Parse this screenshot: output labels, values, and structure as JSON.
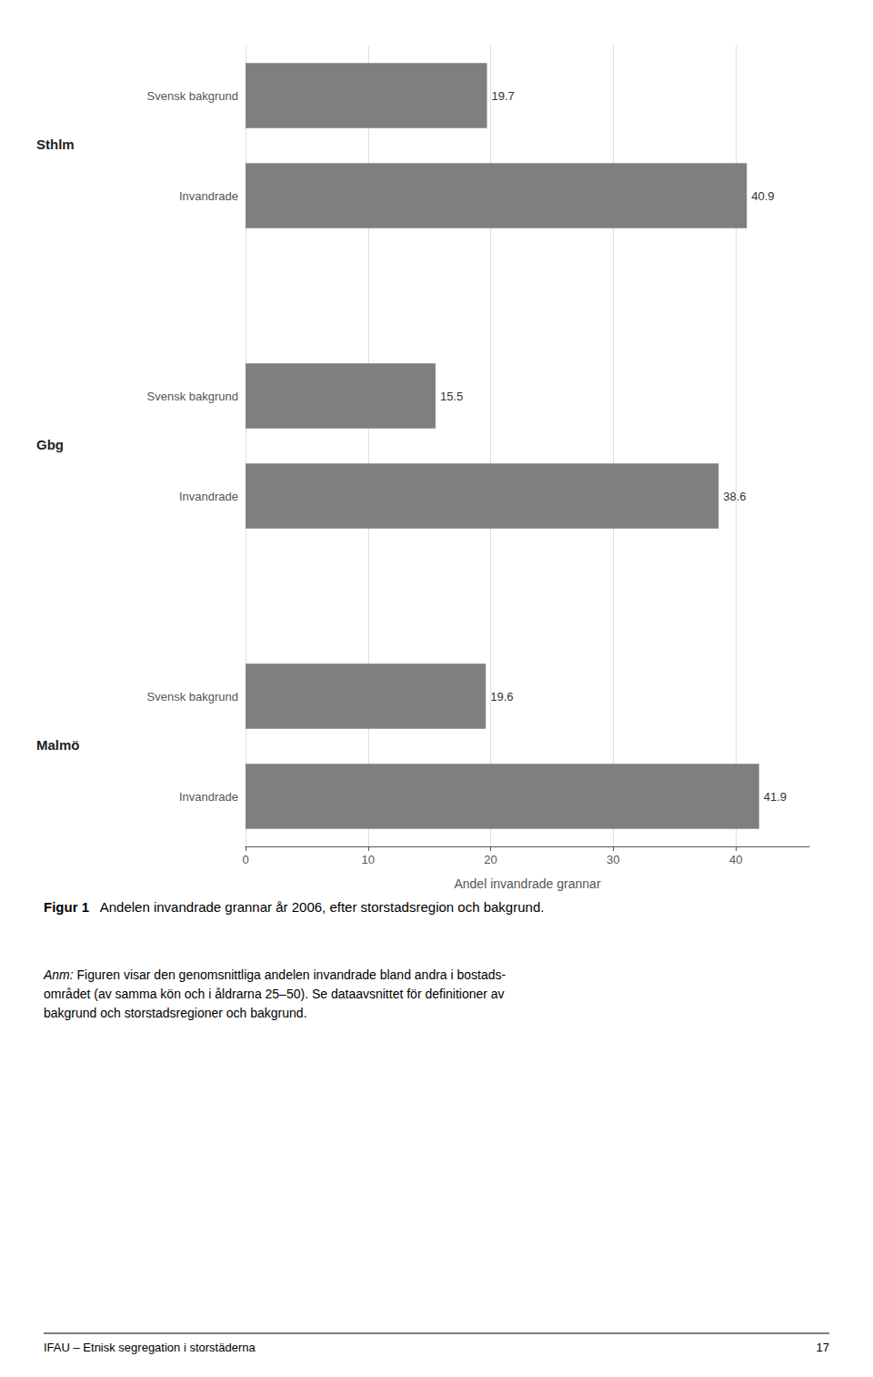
{
  "chart_data": {
    "type": "bar",
    "orientation": "horizontal",
    "categories": [
      "Svensk bakgrund",
      "Invandrade",
      "Svensk bakgrund",
      "Invandrade",
      "Svensk bakgrund",
      "Invandrade"
    ],
    "groups": [
      "Sthlm",
      "Sthlm",
      "Gbg",
      "Gbg",
      "Malmö",
      "Malmö"
    ],
    "values": [
      19.7,
      40.9,
      15.5,
      38.6,
      19.6,
      41.9
    ],
    "color": "#7f7f7f",
    "xlabel": "Andel invandrade grannar",
    "xlim": [
      0,
      46
    ],
    "xticks": [
      0,
      10,
      20,
      30,
      40
    ],
    "grid": true,
    "data_labels": true,
    "caption_label": "Figur 1",
    "caption": "Andelen invandrade grannar år 2006, efter storstadsregion och bakgrund.",
    "note_label": "Anm:",
    "note": "Figuren visar den genomsnittliga andelen invandrade bland andra i bostads-\nområdet (av samma kön och i åldrarna 25–50). Se dataavsnittet för definitioner av\nbakgrund och storstadsregioner och bakgrund.",
    "footer_left": "IFAU – Etnisk segregation i storstäderna",
    "footer_right": "17"
  }
}
